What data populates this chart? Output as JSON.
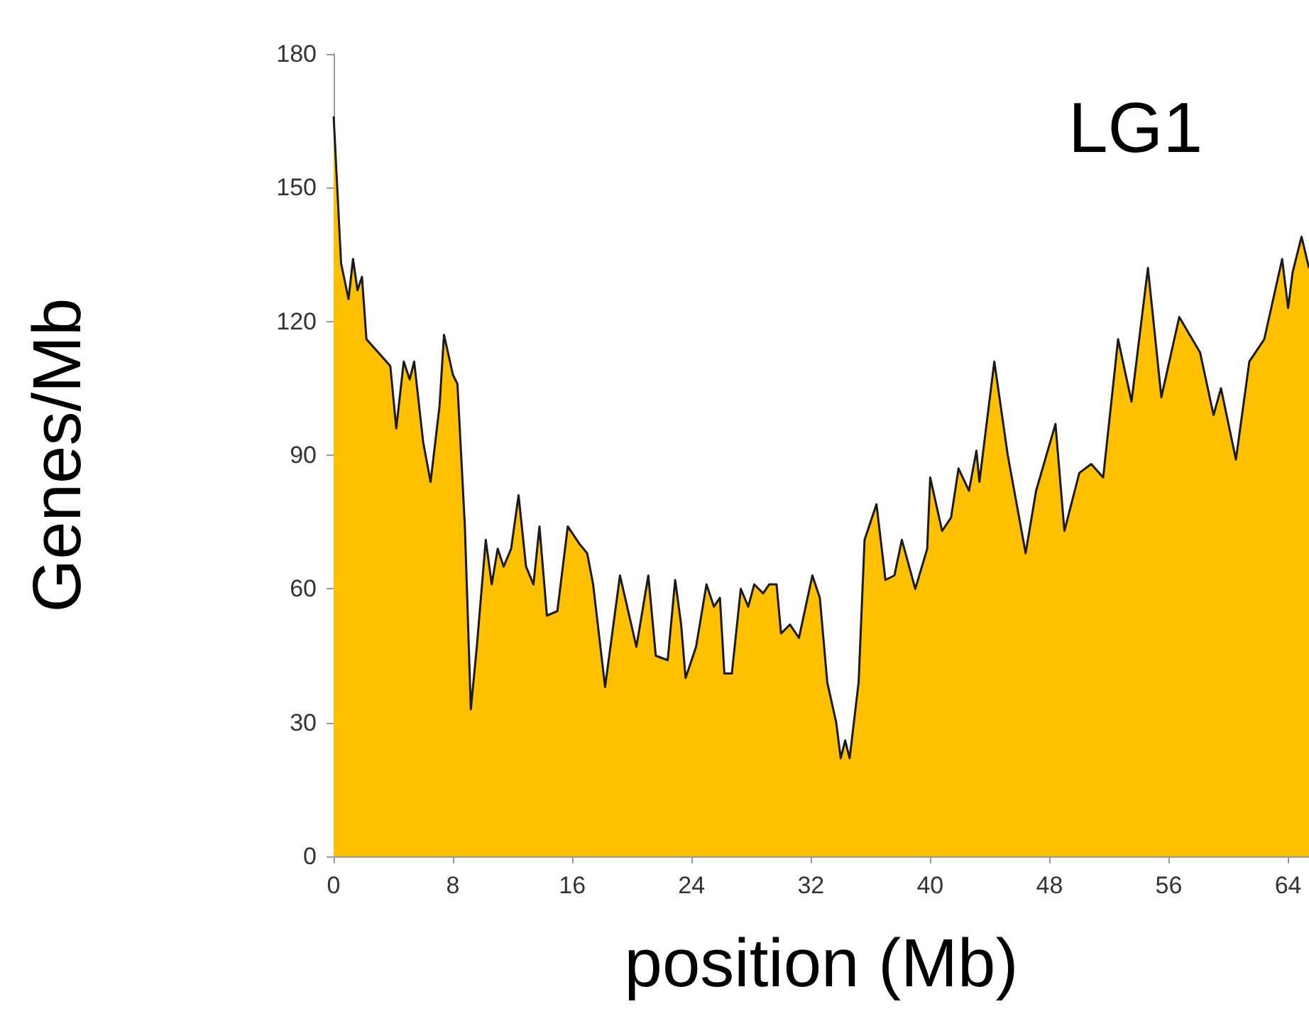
{
  "chart_data": {
    "type": "area",
    "title": "LG1",
    "xlabel": "position (Mb)",
    "ylabel": "Genes/Mb",
    "x": [
      0,
      0.5,
      1.0,
      1.3,
      1.6,
      1.9,
      2.2,
      3,
      3.8,
      4.2,
      4.7,
      5.1,
      5.4,
      6,
      6.5,
      7.1,
      7.4,
      8,
      8.3,
      8.8,
      9.2,
      9.6,
      10.2,
      10.6,
      11,
      11.4,
      11.9,
      12.4,
      12.9,
      13.4,
      13.8,
      14.3,
      15,
      15.7,
      16.5,
      17,
      17.4,
      18.2,
      19.2,
      20.3,
      21.1,
      21.6,
      22.4,
      22.9,
      23.3,
      23.6,
      24.3,
      25,
      25.5,
      25.9,
      26.2,
      26.7,
      27.3,
      27.8,
      28.2,
      28.8,
      29.2,
      29.7,
      30,
      30.6,
      31.2,
      32.1,
      32.6,
      33.1,
      33.7,
      34,
      34.3,
      34.6,
      35.2,
      35.6,
      36.4,
      37,
      37.6,
      38.1,
      39,
      39.8,
      40,
      40.8,
      41.4,
      41.9,
      42.6,
      43.1,
      43.3,
      44.3,
      45.2,
      46.4,
      47.1,
      48.4,
      49,
      50,
      50.8,
      51.6,
      52.6,
      53.5,
      54.6,
      55.5,
      56.7,
      58.1,
      59,
      59.5,
      60.5,
      61.4,
      62.4,
      63.6,
      64,
      64.3,
      64.9,
      65.4
    ],
    "series": [
      {
        "color": "#ffc000",
        "values": [
          166,
          133,
          125,
          134,
          127,
          130,
          116,
          113,
          110,
          96,
          111,
          107,
          111,
          93,
          84,
          101,
          117,
          108,
          106,
          74,
          33,
          47,
          71,
          61,
          69,
          65,
          69,
          81,
          65,
          61,
          74,
          54,
          55,
          74,
          70,
          68,
          61,
          38,
          63,
          47,
          63,
          45,
          44,
          62,
          52,
          40,
          47,
          61,
          56,
          58,
          41,
          41,
          60,
          56,
          61,
          59,
          61,
          61,
          50,
          52,
          49,
          63,
          58,
          39,
          30,
          22,
          26,
          22,
          39,
          71,
          79,
          62,
          63,
          71,
          60,
          69,
          85,
          73,
          76,
          87,
          82,
          91,
          84,
          111,
          90,
          68,
          82,
          97,
          73,
          86,
          88,
          85,
          116,
          102,
          132,
          103,
          121,
          113,
          99,
          105,
          89,
          111,
          116,
          134,
          123,
          131,
          139,
          132
        ]
      }
    ],
    "xlim": [
      0,
      65.4
    ],
    "xticks": [
      0,
      8,
      16,
      24,
      32,
      40,
      48,
      56,
      64
    ],
    "ylim": [
      0,
      180
    ],
    "yticks": [
      0,
      30,
      60,
      90,
      120,
      150,
      180
    ],
    "grid": false,
    "marker": "none",
    "line_style": "solid"
  }
}
